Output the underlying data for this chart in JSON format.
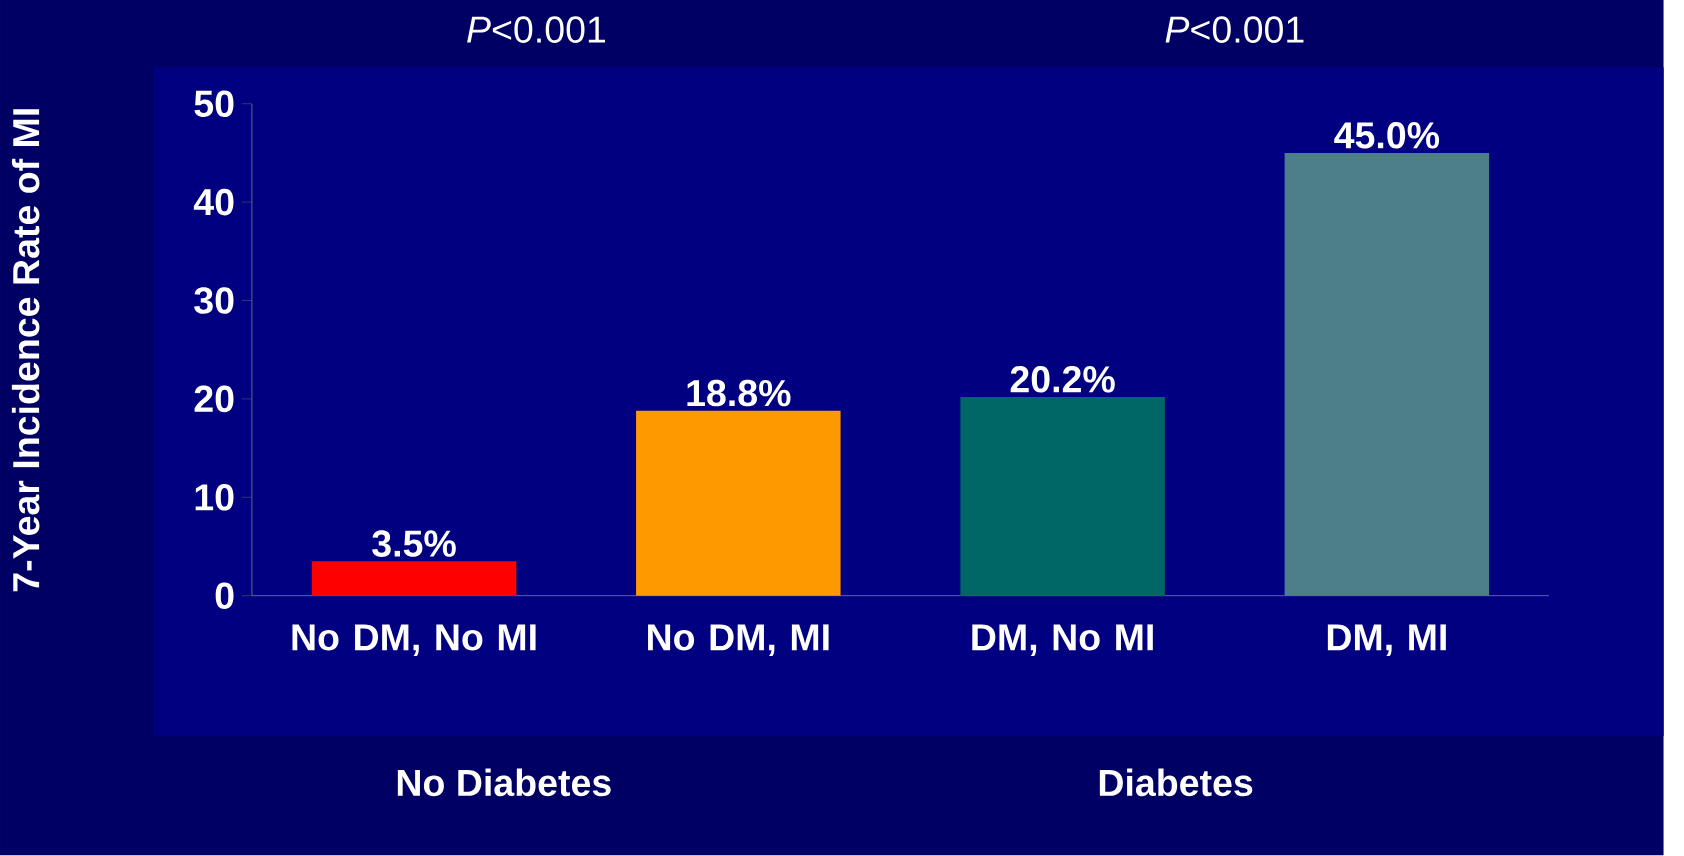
{
  "chart_data": {
    "type": "bar",
    "ylabel": "7-Year Incidence Rate of MI",
    "categories": [
      "No DM, No MI",
      "No DM, MI",
      "DM, No MI",
      "DM, MI"
    ],
    "values": [
      3.5,
      18.8,
      20.2,
      45.0
    ],
    "colors": [
      "#ff0000",
      "#ff9900",
      "#006666",
      "#4d7f8a"
    ],
    "value_labels": [
      "3.5%",
      "18.8%",
      "20.2%",
      "45.0%"
    ],
    "ylim": [
      0,
      50
    ],
    "yticks": [
      0,
      10,
      20,
      30,
      40,
      50
    ],
    "annotations": [
      "*P*<0.001",
      "*P*<0.001",
      "No Diabetes",
      "Diabetes"
    ]
  }
}
